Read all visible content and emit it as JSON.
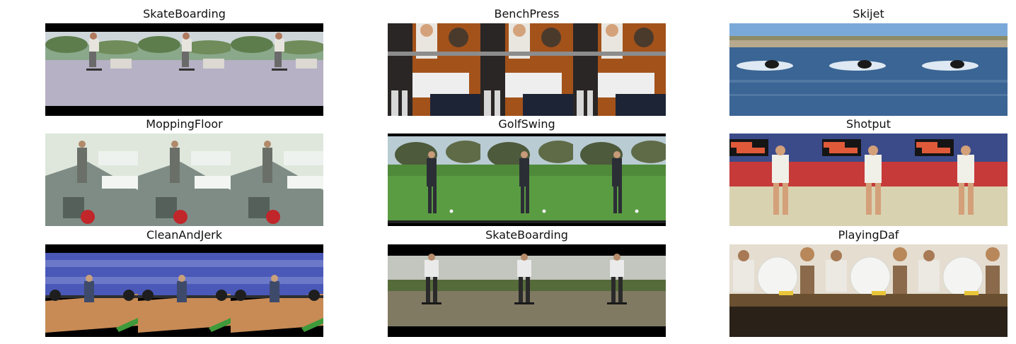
{
  "panels": [
    {
      "title": "SkateBoarding",
      "scene": "skate1"
    },
    {
      "title": "BenchPress",
      "scene": "bench"
    },
    {
      "title": "Skijet",
      "scene": "skijet"
    },
    {
      "title": "MoppingFloor",
      "scene": "mop"
    },
    {
      "title": "GolfSwing",
      "scene": "golf"
    },
    {
      "title": "Shotput",
      "scene": "shotput"
    },
    {
      "title": "CleanAndJerk",
      "scene": "clean"
    },
    {
      "title": "SkateBoarding",
      "scene": "skate2"
    },
    {
      "title": "PlayingDaf",
      "scene": "daf"
    }
  ],
  "frames_per_panel": 3
}
